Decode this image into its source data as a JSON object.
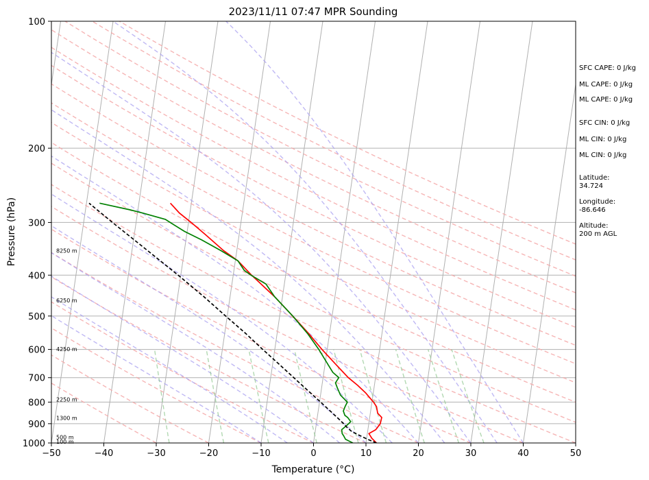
{
  "chart_data": {
    "type": "line",
    "title": "2023/11/11 07:47 MPR Sounding",
    "xlabel": "Temperature (°C)",
    "ylabel": "Pressure (hPa)",
    "xlim": [
      -50,
      50
    ],
    "ylim": [
      1000,
      100
    ],
    "y_scale": "log",
    "skew_per_decade": 90,
    "x_ticks": [
      -50,
      -40,
      -30,
      -20,
      -10,
      0,
      10,
      20,
      30,
      40,
      50
    ],
    "x_tick_labels": [
      "−50",
      "−40",
      "−30",
      "−20",
      "−10",
      "0",
      "10",
      "20",
      "30",
      "40",
      "50"
    ],
    "y_ticks": [
      1000,
      900,
      800,
      700,
      600,
      500,
      400,
      300,
      200,
      100
    ],
    "y_tick_labels": [
      "1000",
      "900",
      "800",
      "700",
      "600",
      "500",
      "400",
      "300",
      "200",
      "100"
    ],
    "grid": true,
    "dry_adiabats_theta_c": [
      -30,
      -20,
      -10,
      0,
      10,
      20,
      30,
      40,
      50,
      60,
      70,
      80,
      90,
      100,
      110,
      120,
      130,
      140,
      150,
      160
    ],
    "moist_adiabats_start_c": [
      -10,
      -5,
      0,
      5,
      10,
      15,
      20,
      25,
      30,
      35,
      40
    ],
    "mixing_ratio_lines_gkg": [
      0.4,
      1,
      2,
      4,
      7,
      10,
      16,
      24,
      32
    ],
    "series": [
      {
        "color": "#ff0000",
        "points": [
          [
            1000,
            12
          ],
          [
            975,
            11
          ],
          [
            950,
            10.3
          ],
          [
            930,
            11.5
          ],
          [
            900,
            12.2
          ],
          [
            870,
            12.3
          ],
          [
            850,
            11.4
          ],
          [
            820,
            11.0
          ],
          [
            800,
            10.3
          ],
          [
            760,
            8.5
          ],
          [
            730,
            6.8
          ],
          [
            700,
            4.8
          ],
          [
            650,
            2.0
          ],
          [
            600,
            -1.0
          ],
          [
            550,
            -4.0
          ],
          [
            500,
            -7.5
          ],
          [
            450,
            -11.5
          ],
          [
            400,
            -16.5
          ],
          [
            370,
            -19.5
          ],
          [
            350,
            -22.5
          ],
          [
            320,
            -26.5
          ],
          [
            300,
            -29.5
          ],
          [
            285,
            -32.0
          ],
          [
            270,
            -34.0
          ]
        ]
      },
      {
        "color": "#008000",
        "points": [
          [
            1000,
            7.5
          ],
          [
            980,
            6.0
          ],
          [
            960,
            5.5
          ],
          [
            950,
            5.2
          ],
          [
            930,
            5.0
          ],
          [
            910,
            5.8
          ],
          [
            890,
            6.5
          ],
          [
            870,
            5.8
          ],
          [
            860,
            5.2
          ],
          [
            840,
            4.8
          ],
          [
            820,
            5.0
          ],
          [
            800,
            5.3
          ],
          [
            770,
            3.8
          ],
          [
            740,
            3.0
          ],
          [
            720,
            2.5
          ],
          [
            700,
            3.0
          ],
          [
            680,
            1.7
          ],
          [
            650,
            0.5
          ],
          [
            600,
            -1.6
          ],
          [
            550,
            -4.2
          ],
          [
            500,
            -7.5
          ],
          [
            450,
            -11.5
          ],
          [
            420,
            -13.5
          ],
          [
            400,
            -16.6
          ],
          [
            390,
            -18.0
          ],
          [
            370,
            -19.5
          ],
          [
            350,
            -23.0
          ],
          [
            330,
            -27.0
          ],
          [
            315,
            -30.5
          ],
          [
            300,
            -33.5
          ],
          [
            295,
            -34.5
          ],
          [
            285,
            -39.0
          ],
          [
            280,
            -41.5
          ],
          [
            270,
            -47.5
          ]
        ]
      },
      {
        "color": "#000000",
        "dashed": true,
        "points": [
          [
            1000,
            12
          ],
          [
            980,
            10.2
          ],
          [
            960,
            8.6
          ],
          [
            940,
            7.0
          ],
          [
            920,
            6.0
          ],
          [
            900,
            5.2
          ],
          [
            870,
            3.8
          ],
          [
            850,
            2.8
          ],
          [
            800,
            0.2
          ],
          [
            750,
            -2.6
          ],
          [
            700,
            -5.6
          ],
          [
            650,
            -8.8
          ],
          [
            600,
            -12.3
          ],
          [
            550,
            -16.0
          ],
          [
            500,
            -20.3
          ],
          [
            450,
            -25.0
          ],
          [
            400,
            -30.5
          ],
          [
            350,
            -37.0
          ],
          [
            300,
            -44.5
          ],
          [
            270,
            -49.5
          ]
        ]
      }
    ],
    "height_labels": [
      {
        "pressure": 1000,
        "label": "100 m"
      },
      {
        "pressure": 968,
        "label": "500 m"
      },
      {
        "pressure": 872,
        "label": "1300 m"
      },
      {
        "pressure": 788,
        "label": "2250 m"
      },
      {
        "pressure": 599,
        "label": "4250 m"
      },
      {
        "pressure": 459,
        "label": "6250 m"
      },
      {
        "pressure": 350,
        "label": "8250 m"
      }
    ]
  },
  "side_panel": {
    "sfc_cape": "SFC CAPE: 0 J/kg",
    "ml_cape_1": "ML CAPE: 0 J/kg",
    "ml_cape_2": "ML CAPE: 0 J/kg",
    "sfc_cin": "SFC CIN: 0 J/kg",
    "ml_cin_1": "ML CIN: 0 J/kg",
    "ml_cin_2": "ML CIN: 0 J/kg",
    "latitude_label": "Latitude:",
    "latitude_value": "34.724",
    "longitude_label": "Longitude:",
    "longitude_value": "-86.646",
    "altitude_label": "Altitude:",
    "altitude_value": "200 m AGL"
  }
}
